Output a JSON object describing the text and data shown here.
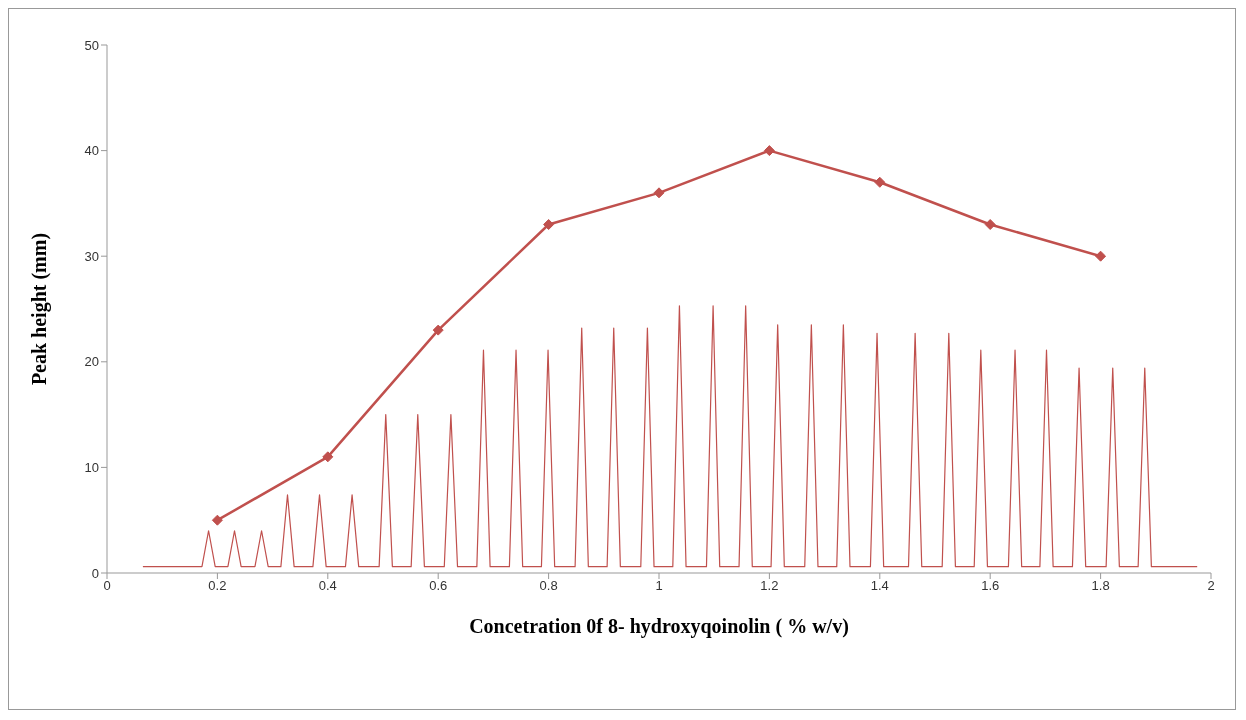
{
  "chart_data": {
    "type": "line",
    "xlabel": "Concetration  0f 8- hydroxyqoinolin ( % w/v)",
    "ylabel": "Peak height (mm)",
    "xlim": [
      0,
      2
    ],
    "xticks": [
      0,
      0.2,
      0.4,
      0.6,
      0.8,
      1,
      1.2,
      1.4,
      1.6,
      1.8,
      2
    ],
    "ylim": [
      0,
      50
    ],
    "yticks": [
      0,
      10,
      20,
      30,
      40,
      50
    ],
    "series": [
      {
        "color": "#c0504d",
        "marker": "diamond",
        "x": [
          0.2,
          0.4,
          0.6,
          0.8,
          1,
          1.2,
          1.4,
          1.6,
          1.8
        ],
        "values": [
          5,
          11,
          23,
          33,
          36,
          40,
          37,
          33,
          30
        ]
      },
      {
        "color": "#c0504d",
        "marker": "none",
        "x": [
          0.065,
          0.172,
          0.184,
          0.196,
          0.219,
          0.231,
          0.243,
          0.268,
          0.28,
          0.292,
          0.315,
          0.327,
          0.339,
          0.373,
          0.385,
          0.397,
          0.432,
          0.444,
          0.456,
          0.493,
          0.505,
          0.517,
          0.551,
          0.563,
          0.575,
          0.611,
          0.623,
          0.635,
          0.67,
          0.682,
          0.694,
          0.729,
          0.741,
          0.753,
          0.787,
          0.799,
          0.811,
          0.848,
          0.86,
          0.872,
          0.906,
          0.918,
          0.93,
          0.967,
          0.979,
          0.991,
          1.025,
          1.037,
          1.049,
          1.086,
          1.098,
          1.11,
          1.145,
          1.157,
          1.169,
          1.203,
          1.215,
          1.227,
          1.264,
          1.276,
          1.288,
          1.322,
          1.334,
          1.346,
          1.383,
          1.395,
          1.407,
          1.452,
          1.464,
          1.476,
          1.513,
          1.525,
          1.537,
          1.571,
          1.583,
          1.595,
          1.633,
          1.645,
          1.657,
          1.69,
          1.702,
          1.714,
          1.749,
          1.761,
          1.773,
          1.81,
          1.822,
          1.834,
          1.868,
          1.88,
          1.892,
          1.975
        ],
        "values": [
          0.6,
          0.6,
          4.0,
          0.6,
          0.6,
          4.0,
          0.6,
          0.6,
          4.0,
          0.6,
          0.6,
          7.4,
          0.6,
          0.6,
          7.4,
          0.6,
          0.6,
          7.4,
          0.6,
          0.6,
          15.0,
          0.6,
          0.6,
          15.0,
          0.6,
          0.6,
          15.0,
          0.6,
          0.6,
          21.1,
          0.6,
          0.6,
          21.1,
          0.6,
          0.6,
          21.1,
          0.6,
          0.6,
          23.2,
          0.6,
          0.6,
          23.2,
          0.6,
          0.6,
          23.2,
          0.6,
          0.6,
          25.3,
          0.6,
          0.6,
          25.3,
          0.6,
          0.6,
          25.3,
          0.6,
          0.6,
          23.5,
          0.6,
          0.6,
          23.5,
          0.6,
          0.6,
          23.5,
          0.6,
          0.6,
          22.7,
          0.6,
          0.6,
          22.7,
          0.6,
          0.6,
          22.7,
          0.6,
          0.6,
          21.1,
          0.6,
          0.6,
          21.1,
          0.6,
          0.6,
          21.1,
          0.6,
          0.6,
          19.4,
          0.6,
          0.6,
          19.4,
          0.6,
          0.6,
          19.4,
          0.6,
          0.6
        ]
      }
    ]
  }
}
